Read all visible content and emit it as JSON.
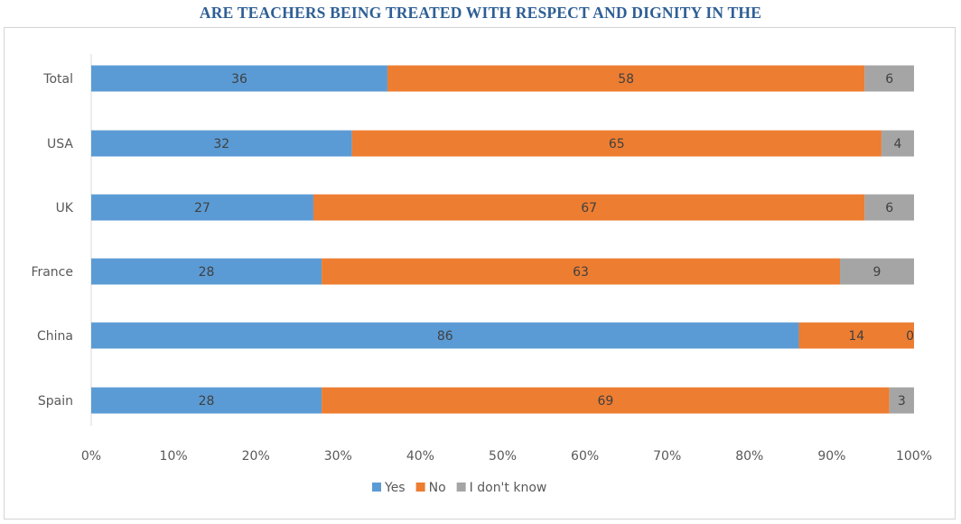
{
  "title": "ARE TEACHERS BEING TREATED WITH RESPECT AND DIGNITY IN THE",
  "chart_data": {
    "type": "bar",
    "orientation": "horizontal",
    "stacked": "percent",
    "categories": [
      "Total",
      "USA",
      "UK",
      "France",
      "China",
      "Spain"
    ],
    "series": [
      {
        "name": "Yes",
        "color": "#5b9bd5",
        "values": [
          36,
          32,
          27,
          28,
          86,
          28
        ]
      },
      {
        "name": "No",
        "color": "#ed7d31",
        "values": [
          58,
          65,
          67,
          63,
          14,
          69
        ]
      },
      {
        "name": "I don't know",
        "color": "#a5a5a5",
        "values": [
          6,
          4,
          6,
          9,
          0,
          3
        ]
      }
    ],
    "x_ticks": [
      "0%",
      "10%",
      "20%",
      "30%",
      "40%",
      "50%",
      "60%",
      "70%",
      "80%",
      "90%",
      "100%"
    ],
    "xlim": [
      0,
      100
    ],
    "legend_position": "bottom",
    "grid": false
  }
}
